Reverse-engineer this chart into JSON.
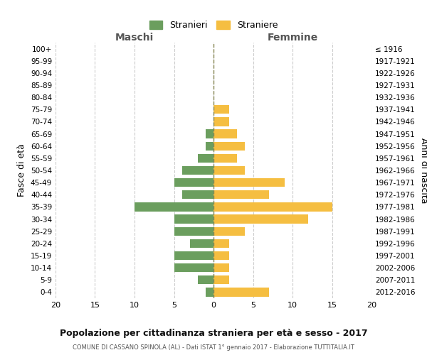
{
  "age_groups": [
    "100+",
    "95-99",
    "90-94",
    "85-89",
    "80-84",
    "75-79",
    "70-74",
    "65-69",
    "60-64",
    "55-59",
    "50-54",
    "45-49",
    "40-44",
    "35-39",
    "30-34",
    "25-29",
    "20-24",
    "15-19",
    "10-14",
    "5-9",
    "0-4"
  ],
  "birth_years": [
    "≤ 1916",
    "1917-1921",
    "1922-1926",
    "1927-1931",
    "1932-1936",
    "1937-1941",
    "1942-1946",
    "1947-1951",
    "1952-1956",
    "1957-1961",
    "1962-1966",
    "1967-1971",
    "1972-1976",
    "1977-1981",
    "1982-1986",
    "1987-1991",
    "1992-1996",
    "1997-2001",
    "2002-2006",
    "2007-2011",
    "2012-2016"
  ],
  "males": [
    0,
    0,
    0,
    0,
    0,
    0,
    0,
    1,
    1,
    2,
    4,
    5,
    4,
    10,
    5,
    5,
    3,
    5,
    5,
    2,
    1
  ],
  "females": [
    0,
    0,
    0,
    0,
    0,
    2,
    2,
    3,
    4,
    3,
    4,
    9,
    7,
    15,
    12,
    4,
    2,
    2,
    2,
    2,
    7
  ],
  "male_color": "#6b9e5e",
  "female_color": "#f5be41",
  "title": "Popolazione per cittadinanza straniera per età e sesso - 2017",
  "subtitle": "COMUNE DI CASSANO SPINOLA (AL) - Dati ISTAT 1° gennaio 2017 - Elaborazione TUTTITALIA.IT",
  "ylabel_left": "Fasce di età",
  "ylabel_right": "Anni di nascita",
  "legend_male": "Stranieri",
  "legend_female": "Straniere",
  "xlim": 20,
  "background_color": "#ffffff",
  "grid_color": "#cccccc",
  "maschi_label": "Maschi",
  "femmine_label": "Femmine",
  "dashed_line_color": "#888855"
}
